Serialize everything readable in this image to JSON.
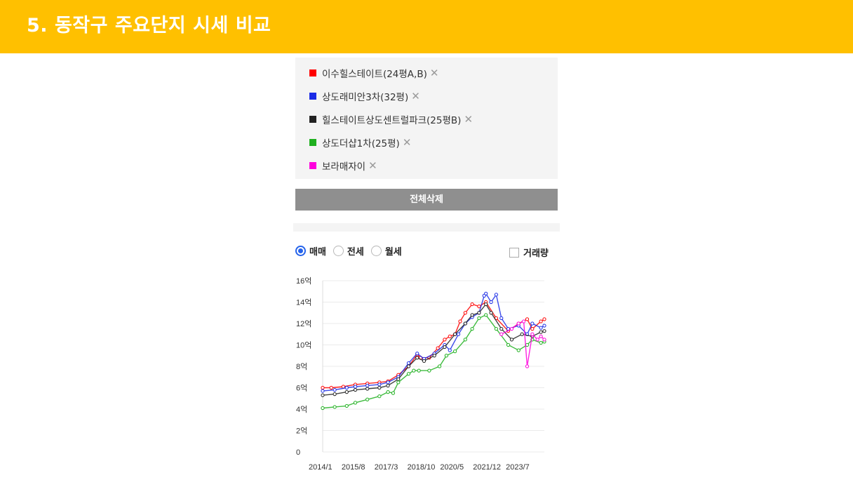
{
  "header": {
    "title": "5. 동작구 주요단지 시세 비교"
  },
  "legend": [
    {
      "label": "이수힐스테이트(24평A,B)",
      "color": "#ff0000"
    },
    {
      "label": "상도래미안3차(32평)",
      "color": "#1a2be6"
    },
    {
      "label": "힐스테이트상도센트럴파크(25평B)",
      "color": "#222222"
    },
    {
      "label": "상도더샵1차(25평)",
      "color": "#1fb01f"
    },
    {
      "label": "보라매자이",
      "color": "#ff00dd"
    }
  ],
  "remove_icon": "close-icon",
  "clear_all_label": "전체삭제",
  "tabs": [
    {
      "label": "매매",
      "selected": true
    },
    {
      "label": "전세",
      "selected": false
    },
    {
      "label": "월세",
      "selected": false
    }
  ],
  "volume_label": "거래량",
  "chart_data": {
    "type": "line",
    "ylim": [
      0,
      16
    ],
    "y_ticks": [
      0,
      2,
      4,
      6,
      8,
      10,
      12,
      14,
      16
    ],
    "y_tick_labels": [
      "0",
      "2억",
      "4억",
      "6억",
      "8억",
      "10억",
      "12억",
      "14억",
      "16억"
    ],
    "x_tick_labels": [
      "2014/1",
      "2015/8",
      "2017/3",
      "2018/10",
      "2020/5",
      "2021/12",
      "2023/7"
    ],
    "xlim": [
      "2014-01",
      "2024-10"
    ],
    "grid": true,
    "series": [
      {
        "name": "이수힐스테이트(24평A,B)",
        "color": "#ff0000",
        "points": [
          [
            "2014-01",
            6.0
          ],
          [
            "2014-06",
            6.0
          ],
          [
            "2015-01",
            6.1
          ],
          [
            "2015-08",
            6.3
          ],
          [
            "2016-03",
            6.4
          ],
          [
            "2016-10",
            6.5
          ],
          [
            "2017-03",
            6.6
          ],
          [
            "2017-09",
            7.2
          ],
          [
            "2018-03",
            8.0
          ],
          [
            "2018-08",
            9.1
          ],
          [
            "2018-10",
            8.8
          ],
          [
            "2019-03",
            8.8
          ],
          [
            "2019-08",
            9.7
          ],
          [
            "2019-12",
            10.5
          ],
          [
            "2020-03",
            10.8
          ],
          [
            "2020-06",
            11.0
          ],
          [
            "2020-09",
            12.2
          ],
          [
            "2020-12",
            13.0
          ],
          [
            "2021-04",
            13.8
          ],
          [
            "2021-08",
            13.6
          ],
          [
            "2021-12",
            14.0
          ],
          [
            "2022-06",
            12.5
          ],
          [
            "2023-01",
            11.3
          ],
          [
            "2023-07",
            12.0
          ],
          [
            "2023-12",
            12.4
          ],
          [
            "2024-03",
            11.5
          ],
          [
            "2024-08",
            12.2
          ],
          [
            "2024-10",
            12.4
          ]
        ]
      },
      {
        "name": "상도래미안3차(32평)",
        "color": "#1a2be6",
        "points": [
          [
            "2014-01",
            5.7
          ],
          [
            "2014-08",
            5.8
          ],
          [
            "2015-03",
            6.0
          ],
          [
            "2015-08",
            6.1
          ],
          [
            "2016-03",
            6.2
          ],
          [
            "2016-10",
            6.3
          ],
          [
            "2017-03",
            6.5
          ],
          [
            "2017-09",
            7.0
          ],
          [
            "2018-03",
            8.3
          ],
          [
            "2018-08",
            9.2
          ],
          [
            "2018-12",
            8.7
          ],
          [
            "2019-06",
            9.2
          ],
          [
            "2019-12",
            10.0
          ],
          [
            "2020-03",
            9.5
          ],
          [
            "2020-08",
            11.0
          ],
          [
            "2020-12",
            12.0
          ],
          [
            "2021-04",
            12.6
          ],
          [
            "2021-08",
            13.0
          ],
          [
            "2021-11",
            14.6
          ],
          [
            "2021-12",
            14.8
          ],
          [
            "2022-03",
            14.0
          ],
          [
            "2022-06",
            14.7
          ],
          [
            "2022-09",
            12.5
          ],
          [
            "2023-01",
            11.5
          ],
          [
            "2023-07",
            11.8
          ],
          [
            "2023-12",
            11.0
          ],
          [
            "2024-03",
            12.0
          ],
          [
            "2024-08",
            11.6
          ],
          [
            "2024-10",
            11.8
          ]
        ]
      },
      {
        "name": "힐스테이트상도센트럴파크(25평B)",
        "color": "#222222",
        "points": [
          [
            "2014-01",
            5.3
          ],
          [
            "2014-08",
            5.4
          ],
          [
            "2015-03",
            5.6
          ],
          [
            "2015-08",
            5.8
          ],
          [
            "2016-03",
            5.9
          ],
          [
            "2016-10",
            6.0
          ],
          [
            "2017-03",
            6.2
          ],
          [
            "2017-09",
            6.8
          ],
          [
            "2018-03",
            8.0
          ],
          [
            "2018-08",
            8.8
          ],
          [
            "2018-12",
            8.5
          ],
          [
            "2019-06",
            9.0
          ],
          [
            "2019-12",
            9.8
          ],
          [
            "2020-06",
            11.0
          ],
          [
            "2020-12",
            12.0
          ],
          [
            "2021-04",
            12.8
          ],
          [
            "2021-08",
            13.0
          ],
          [
            "2021-12",
            13.8
          ],
          [
            "2022-03",
            13.0
          ],
          [
            "2022-09",
            11.5
          ],
          [
            "2023-03",
            10.5
          ],
          [
            "2023-09",
            11.0
          ],
          [
            "2024-03",
            10.8
          ],
          [
            "2024-08",
            11.2
          ],
          [
            "2024-10",
            11.3
          ]
        ]
      },
      {
        "name": "상도더샵1차(25평)",
        "color": "#1fb01f",
        "points": [
          [
            "2014-01",
            4.1
          ],
          [
            "2014-08",
            4.2
          ],
          [
            "2015-03",
            4.3
          ],
          [
            "2015-08",
            4.6
          ],
          [
            "2016-03",
            4.9
          ],
          [
            "2016-10",
            5.2
          ],
          [
            "2017-03",
            5.6
          ],
          [
            "2017-06",
            5.5
          ],
          [
            "2017-09",
            6.5
          ],
          [
            "2018-03",
            7.3
          ],
          [
            "2018-06",
            7.6
          ],
          [
            "2018-09",
            7.6
          ],
          [
            "2019-03",
            7.6
          ],
          [
            "2019-09",
            8.0
          ],
          [
            "2020-01",
            9.0
          ],
          [
            "2020-06",
            9.4
          ],
          [
            "2020-12",
            10.5
          ],
          [
            "2021-04",
            11.5
          ],
          [
            "2021-08",
            12.5
          ],
          [
            "2021-12",
            12.8
          ],
          [
            "2022-06",
            11.5
          ],
          [
            "2023-01",
            10.0
          ],
          [
            "2023-07",
            9.5
          ],
          [
            "2023-12",
            10.0
          ],
          [
            "2024-03",
            10.5
          ],
          [
            "2024-08",
            10.2
          ],
          [
            "2024-10",
            10.3
          ]
        ]
      },
      {
        "name": "보라매자이",
        "color": "#ff00dd",
        "points": [
          [
            "2022-09",
            11.0
          ],
          [
            "2023-03",
            11.5
          ],
          [
            "2023-07",
            12.0
          ],
          [
            "2023-10",
            12.2
          ],
          [
            "2023-12",
            8.0
          ],
          [
            "2024-03",
            11.0
          ],
          [
            "2024-06",
            10.5
          ],
          [
            "2024-08",
            10.8
          ],
          [
            "2024-10",
            10.5
          ]
        ]
      }
    ]
  }
}
